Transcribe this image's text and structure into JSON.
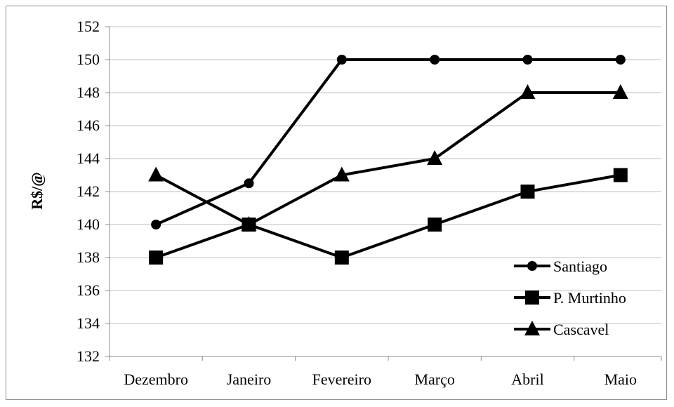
{
  "chart_data": {
    "type": "line",
    "title": "",
    "xlabel": "",
    "ylabel": "R$/@",
    "categories": [
      "Dezembro",
      "Janeiro",
      "Fevereiro",
      "Março",
      "Abril",
      "Maio"
    ],
    "ylim": [
      132,
      152
    ],
    "yticks": [
      132,
      134,
      136,
      138,
      140,
      142,
      144,
      146,
      148,
      150,
      152
    ],
    "grid": true,
    "legend_position": "bottom-right",
    "series": [
      {
        "name": "Santiago",
        "marker": "circle",
        "values": [
          140,
          142.5,
          150,
          150,
          150,
          150
        ]
      },
      {
        "name": "P. Murtinho",
        "marker": "square",
        "values": [
          138,
          140,
          138,
          140,
          142,
          143
        ]
      },
      {
        "name": "Cascavel",
        "marker": "triangle",
        "values": [
          143,
          140,
          143,
          144,
          148,
          148
        ]
      }
    ],
    "colors": {
      "line": "#000000",
      "grid": "#bfbfbf",
      "axis": "#8c8c8c"
    }
  }
}
